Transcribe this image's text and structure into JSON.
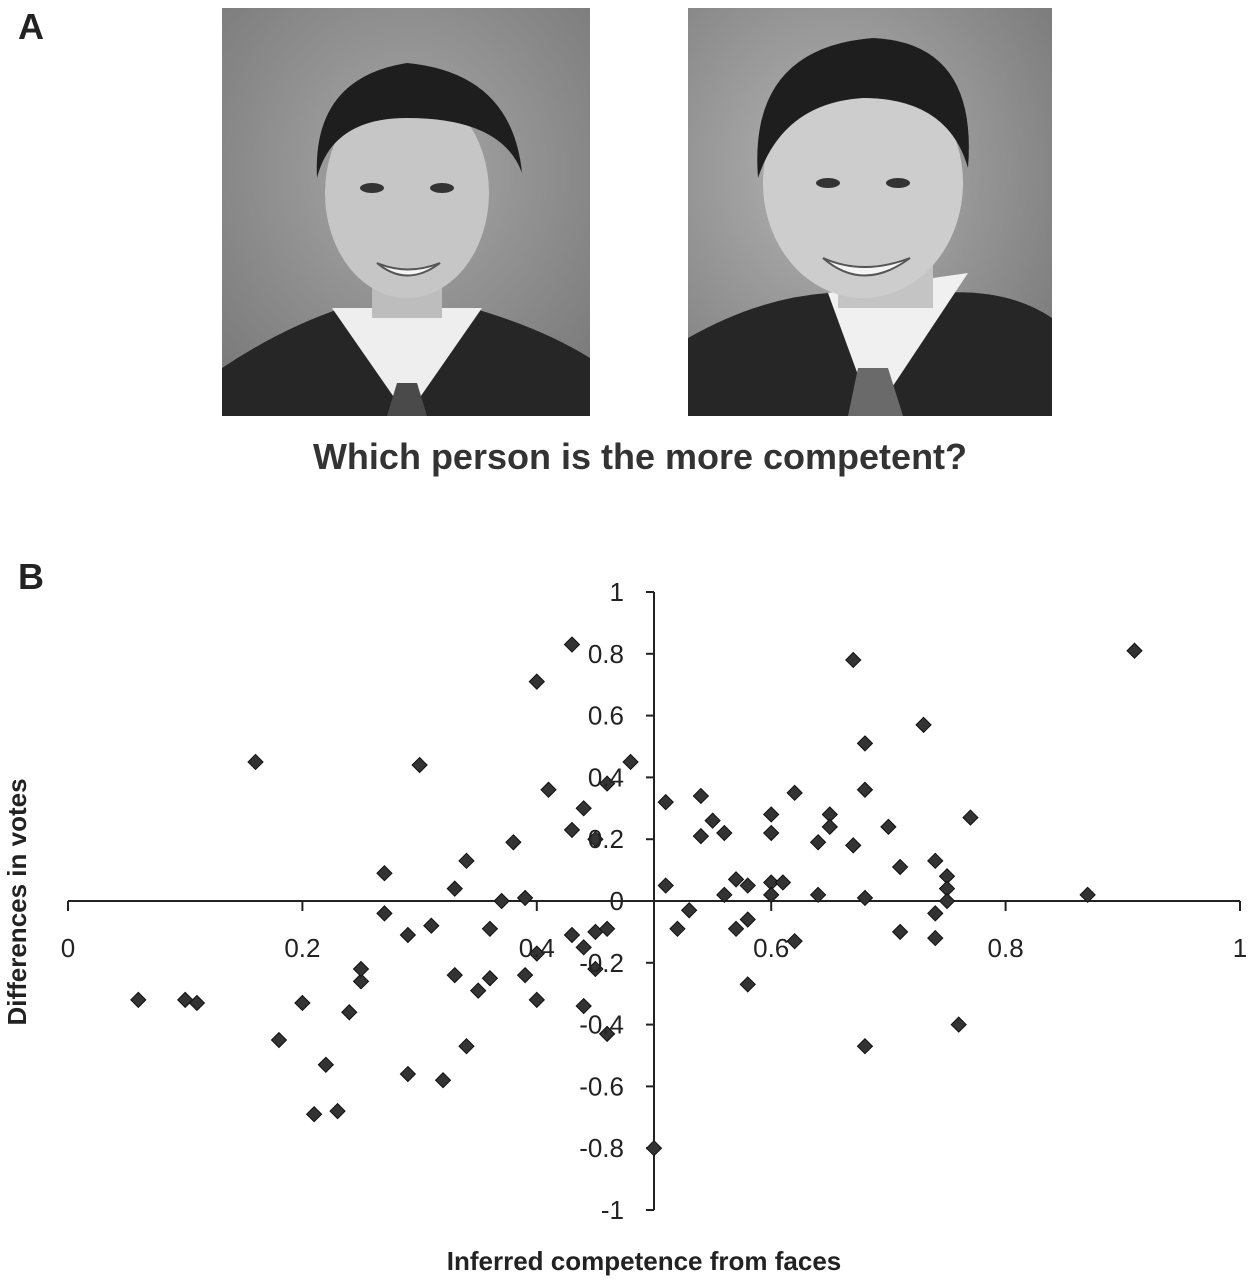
{
  "panels": {
    "a_label": "A",
    "b_label": "B"
  },
  "question": "Which person is the more competent?",
  "photos": [
    {
      "name": "candidate-left-photo",
      "description": ""
    },
    {
      "name": "candidate-right-photo",
      "description": ""
    }
  ],
  "chart_data": {
    "type": "scatter",
    "xlabel": "Inferred competence from faces",
    "ylabel": "Differences in votes",
    "xlim": [
      0,
      1
    ],
    "ylim": [
      -1,
      1
    ],
    "xticks": [
      "0",
      "0.2",
      "0.4",
      "0.6",
      "0.8",
      "1"
    ],
    "yticks": [
      "1",
      "0.8",
      "0.6",
      "0.4",
      "0.2",
      "0",
      "-0.2",
      "-0.4",
      "-0.6",
      "-0.8",
      "-1"
    ],
    "grid": false,
    "marker_color": "#333333",
    "points": [
      [
        0.06,
        -0.32
      ],
      [
        0.1,
        -0.32
      ],
      [
        0.11,
        -0.33
      ],
      [
        0.16,
        0.45
      ],
      [
        0.18,
        -0.45
      ],
      [
        0.2,
        -0.33
      ],
      [
        0.21,
        -0.69
      ],
      [
        0.22,
        -0.53
      ],
      [
        0.23,
        -0.68
      ],
      [
        0.24,
        -0.36
      ],
      [
        0.25,
        -0.26
      ],
      [
        0.25,
        -0.22
      ],
      [
        0.27,
        0.09
      ],
      [
        0.27,
        -0.04
      ],
      [
        0.29,
        -0.11
      ],
      [
        0.29,
        -0.56
      ],
      [
        0.3,
        0.44
      ],
      [
        0.31,
        -0.08
      ],
      [
        0.32,
        -0.58
      ],
      [
        0.33,
        0.04
      ],
      [
        0.33,
        -0.24
      ],
      [
        0.34,
        0.13
      ],
      [
        0.34,
        -0.47
      ],
      [
        0.35,
        -0.29
      ],
      [
        0.36,
        -0.09
      ],
      [
        0.36,
        -0.25
      ],
      [
        0.37,
        0.0
      ],
      [
        0.38,
        0.19
      ],
      [
        0.39,
        0.01
      ],
      [
        0.39,
        -0.24
      ],
      [
        0.4,
        0.71
      ],
      [
        0.4,
        -0.17
      ],
      [
        0.4,
        -0.32
      ],
      [
        0.41,
        0.36
      ],
      [
        0.43,
        0.83
      ],
      [
        0.43,
        0.23
      ],
      [
        0.43,
        -0.11
      ],
      [
        0.44,
        0.3
      ],
      [
        0.44,
        -0.15
      ],
      [
        0.44,
        -0.34
      ],
      [
        0.45,
        0.2
      ],
      [
        0.45,
        -0.1
      ],
      [
        0.45,
        -0.22
      ],
      [
        0.46,
        0.38
      ],
      [
        0.46,
        -0.09
      ],
      [
        0.46,
        -0.43
      ],
      [
        0.48,
        0.45
      ],
      [
        0.5,
        -0.8
      ],
      [
        0.51,
        0.32
      ],
      [
        0.51,
        0.05
      ],
      [
        0.52,
        -0.09
      ],
      [
        0.53,
        -0.03
      ],
      [
        0.54,
        0.34
      ],
      [
        0.54,
        0.21
      ],
      [
        0.55,
        0.26
      ],
      [
        0.56,
        0.22
      ],
      [
        0.56,
        0.02
      ],
      [
        0.57,
        0.07
      ],
      [
        0.57,
        -0.09
      ],
      [
        0.58,
        0.05
      ],
      [
        0.58,
        -0.06
      ],
      [
        0.58,
        -0.27
      ],
      [
        0.6,
        0.28
      ],
      [
        0.6,
        0.22
      ],
      [
        0.6,
        0.06
      ],
      [
        0.6,
        0.02
      ],
      [
        0.61,
        0.06
      ],
      [
        0.62,
        0.35
      ],
      [
        0.62,
        -0.13
      ],
      [
        0.64,
        0.19
      ],
      [
        0.64,
        0.02
      ],
      [
        0.65,
        0.28
      ],
      [
        0.65,
        0.24
      ],
      [
        0.67,
        0.78
      ],
      [
        0.67,
        0.18
      ],
      [
        0.68,
        0.51
      ],
      [
        0.68,
        0.36
      ],
      [
        0.68,
        0.01
      ],
      [
        0.68,
        -0.47
      ],
      [
        0.7,
        0.24
      ],
      [
        0.71,
        0.11
      ],
      [
        0.71,
        -0.1
      ],
      [
        0.73,
        0.57
      ],
      [
        0.74,
        0.13
      ],
      [
        0.74,
        -0.04
      ],
      [
        0.74,
        -0.12
      ],
      [
        0.75,
        0.08
      ],
      [
        0.75,
        0.04
      ],
      [
        0.75,
        0.0
      ],
      [
        0.76,
        -0.4
      ],
      [
        0.77,
        0.27
      ],
      [
        0.87,
        0.02
      ],
      [
        0.91,
        0.81
      ]
    ]
  }
}
